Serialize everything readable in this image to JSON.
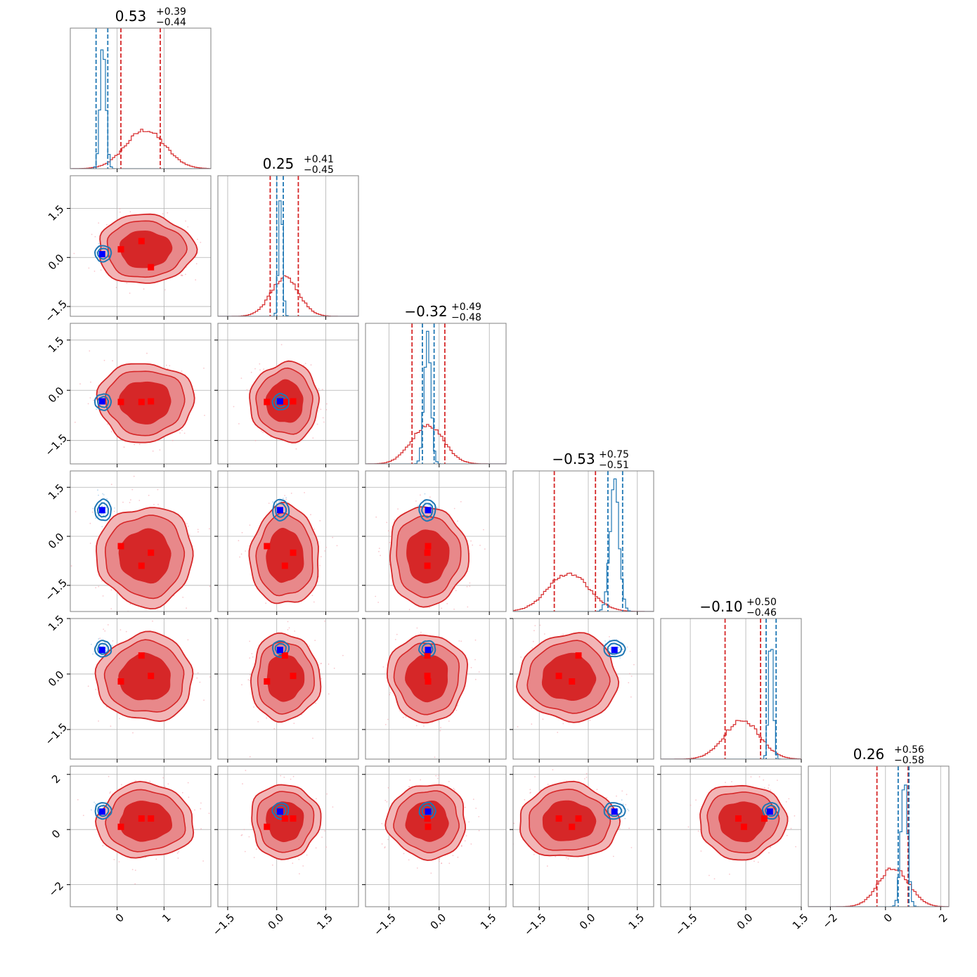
{
  "chart_data": {
    "type": "corner",
    "num_params": 6,
    "grid": true,
    "colors": {
      "posterior_a": "#d62728",
      "posterior_a_fill_outer": "#f2b5b6",
      "posterior_a_fill_mid": "#e8888a",
      "posterior_a_fill_inner": "#d62728",
      "posterior_b": "#1f77b4",
      "truth_marker_a": "#ff0000",
      "truth_marker_b": "#0000ff"
    },
    "titles": [
      {
        "median": "0.53",
        "plus": "+0.39",
        "minus": "−0.44"
      },
      {
        "median": "0.25",
        "plus": "+0.41",
        "minus": "−0.45"
      },
      {
        "median": "−0.32",
        "plus": "+0.49",
        "minus": "−0.48"
      },
      {
        "median": "−0.53",
        "plus": "+0.75",
        "minus": "−0.51"
      },
      {
        "median": "−0.10",
        "plus": "+0.50",
        "minus": "−0.46"
      },
      {
        "median": "0.26",
        "plus": "+0.56",
        "minus": "−0.58"
      }
    ],
    "params": [
      {
        "range": [
          -1.0,
          2.0
        ],
        "ticks": [
          0,
          1
        ],
        "tick_labels": [
          "0",
          "1"
        ],
        "y_ticks": [],
        "y_tick_labels": [],
        "a": {
          "mean": 0.6,
          "sd": 0.42
        },
        "b": {
          "mean": -0.3,
          "sd": 0.06
        },
        "a_quantiles": [
          0.08,
          0.92
        ],
        "b_quantiles": [
          -0.45,
          -0.2
        ],
        "markers_a": [
          0.08,
          0.52,
          0.72
        ],
        "marker_b": -0.32
      },
      {
        "range": [
          -1.8,
          2.5
        ],
        "ticks": [
          -1.5,
          0.0,
          1.5
        ],
        "tick_labels": [
          "−1.5",
          "0.0",
          "1.5"
        ],
        "y_ticks": [
          -1.5,
          0.0,
          1.5
        ],
        "y_tick_labels": [
          "−1.5",
          "0.0",
          "1.5"
        ],
        "a": {
          "mean": 0.25,
          "sd": 0.43
        },
        "b": {
          "mean": 0.12,
          "sd": 0.06
        },
        "a_quantiles": [
          -0.2,
          0.66
        ],
        "b_quantiles": [
          0.0,
          0.2
        ],
        "markers_a": [
          -0.3,
          0.25,
          0.5
        ],
        "marker_b": 0.1
      },
      {
        "range": [
          -2.2,
          2.0
        ],
        "ticks": [
          -1.5,
          0.0,
          1.5
        ],
        "tick_labels": [
          "−1.5",
          "0.0",
          "1.5"
        ],
        "y_ticks": [
          -1.5,
          0.0,
          1.5
        ],
        "y_tick_labels": [
          "−1.5",
          "0.0",
          "1.5"
        ],
        "a": {
          "mean": -0.35,
          "sd": 0.48
        },
        "b": {
          "mean": -0.35,
          "sd": 0.1
        },
        "a_quantiles": [
          -0.81,
          0.17
        ],
        "b_quantiles": [
          -0.5,
          -0.15
        ],
        "markers_a": [
          -0.33,
          -0.35,
          -0.35
        ],
        "marker_b": -0.33
      },
      {
        "range": [
          -2.3,
          2.0
        ],
        "ticks": [
          -1.5,
          0.0,
          1.5
        ],
        "tick_labels": [
          "−1.5",
          "0.0",
          "1.5"
        ],
        "y_ticks": [
          -1.5,
          0.0,
          1.5
        ],
        "y_tick_labels": [
          "−1.5",
          "0.0",
          "1.5"
        ],
        "a": {
          "mean": -0.6,
          "sd": 0.62
        },
        "b": {
          "mean": 0.8,
          "sd": 0.14
        },
        "a_quantiles": [
          -1.04,
          0.22
        ],
        "b_quantiles": [
          0.6,
          1.05
        ],
        "markers_a": [
          -0.5,
          -0.3,
          -0.9
        ],
        "marker_b": 0.8
      },
      {
        "range": [
          -2.3,
          1.5
        ],
        "ticks": [
          -1.5,
          0.0,
          1.5
        ],
        "tick_labels": [
          "−1.5",
          "0.0",
          "1.5"
        ],
        "y_ticks": [
          -1.5,
          0.0,
          1.5
        ],
        "y_tick_labels": [
          "−1.5",
          "0.0",
          "1.5"
        ],
        "a": {
          "mean": -0.1,
          "sd": 0.48
        },
        "b": {
          "mean": 0.68,
          "sd": 0.06
        },
        "a_quantiles": [
          -0.56,
          0.4
        ],
        "b_quantiles": [
          0.55,
          0.82
        ],
        "markers_a": [
          -0.05,
          -0.2,
          0.5
        ],
        "marker_b": 0.65
      },
      {
        "range": [
          -2.8,
          2.3
        ],
        "ticks": [
          -2,
          0,
          2
        ],
        "tick_labels": [
          "−2",
          "0",
          "2"
        ],
        "y_ticks": [
          -2,
          0,
          2
        ],
        "y_tick_labels": [
          "−2",
          "0",
          "2"
        ],
        "a": {
          "mean": 0.3,
          "sd": 0.55
        },
        "b": {
          "mean": 0.68,
          "sd": 0.12
        },
        "a_quantiles": [
          -0.31,
          0.82
        ],
        "b_quantiles": [
          0.46,
          0.85
        ],
        "markers_a": [
          0.4,
          0.1,
          0.4
        ],
        "marker_b": 0.65
      }
    ]
  }
}
